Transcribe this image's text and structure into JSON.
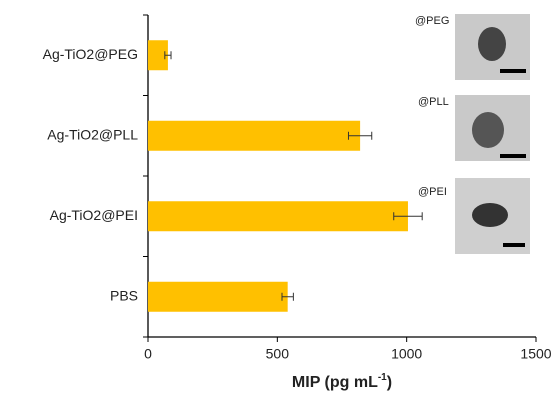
{
  "chart_data": {
    "type": "hbar",
    "categories": [
      "Ag-TiO2@PEG",
      "Ag-TiO2@PLL",
      "Ag-TiO2@PEI",
      "PBS"
    ],
    "values": [
      77,
      820,
      1005,
      540
    ],
    "errors": [
      12,
      45,
      55,
      22
    ],
    "color": "#ffc000",
    "xlim": [
      0,
      1500
    ],
    "xticks": [
      0,
      500,
      1000,
      1500
    ],
    "x_label": {
      "text": "MIP (pg mL",
      "superscript": "-1",
      "suffix": ")"
    },
    "inset_labels": [
      "@PEG",
      "@PLL",
      "@PEI"
    ]
  }
}
